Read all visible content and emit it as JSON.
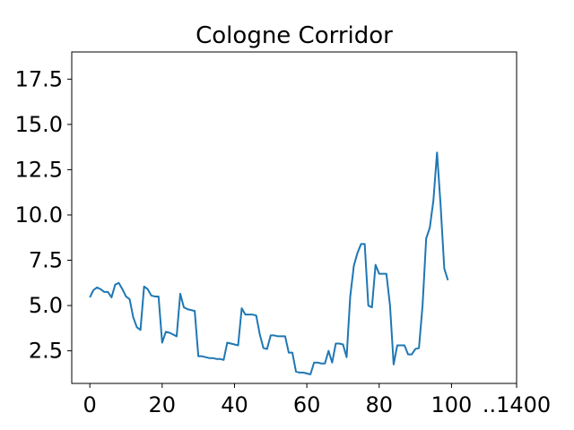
{
  "chart_data": {
    "type": "line",
    "title": "Cologne Corridor",
    "xlabel": "",
    "ylabel": "",
    "x_ticks": [
      "0",
      "20",
      "40",
      "60",
      "80",
      "100",
      "..1400"
    ],
    "y_ticks": [
      "2.5",
      "5.0",
      "7.5",
      "10.0",
      "12.5",
      "15.0",
      "17.5"
    ],
    "xlim": [
      -5,
      118
    ],
    "ylim": [
      0.7,
      19.0
    ],
    "grid": false,
    "legend": "none",
    "line_color": "#1f77b4",
    "series": [
      {
        "x": [
          0,
          1,
          2,
          3,
          4,
          5,
          6,
          7,
          8,
          9,
          10,
          11,
          12,
          13,
          14,
          15,
          16,
          17,
          18,
          19,
          20,
          21,
          22,
          23,
          24,
          25,
          26,
          27,
          28,
          29,
          30,
          31,
          32,
          33,
          34,
          35,
          36,
          37,
          38,
          39,
          40,
          41,
          42,
          43,
          44,
          45,
          46,
          47,
          48,
          49,
          50,
          51,
          52,
          53,
          54,
          55,
          56,
          57,
          58,
          59,
          60,
          61,
          62,
          63,
          64,
          65,
          66,
          67,
          68,
          69,
          70,
          71,
          72,
          73,
          74,
          75,
          76,
          77,
          78,
          79,
          80,
          81,
          82,
          83,
          84,
          85,
          86,
          87,
          88,
          89,
          90,
          91,
          92,
          93,
          94,
          95,
          96,
          97,
          98,
          99
        ],
        "y": [
          5.45,
          5.85,
          6.0,
          5.9,
          5.75,
          5.75,
          5.45,
          6.15,
          6.25,
          5.9,
          5.5,
          5.35,
          4.35,
          3.8,
          3.65,
          6.05,
          5.9,
          5.55,
          5.5,
          5.5,
          2.95,
          3.55,
          3.5,
          3.4,
          3.3,
          5.65,
          4.9,
          4.8,
          4.75,
          4.7,
          2.2,
          2.2,
          2.15,
          2.1,
          2.1,
          2.05,
          2.05,
          2.0,
          2.95,
          2.9,
          2.85,
          2.8,
          4.85,
          4.5,
          4.5,
          4.5,
          4.45,
          3.4,
          2.65,
          2.6,
          3.35,
          3.35,
          3.3,
          3.3,
          3.3,
          2.4,
          2.4,
          1.35,
          1.3,
          1.3,
          1.25,
          1.2,
          1.85,
          1.85,
          1.8,
          1.8,
          2.5,
          1.85,
          2.9,
          2.9,
          2.85,
          2.15,
          5.5,
          7.2,
          7.9,
          8.4,
          8.4,
          5.0,
          4.9,
          7.25,
          6.75,
          6.75,
          6.75,
          5.0,
          1.75,
          2.8,
          2.8,
          2.8,
          2.3,
          2.3,
          2.6,
          2.65,
          5.0,
          8.7,
          9.3,
          10.8,
          13.45,
          10.5,
          7.05,
          6.4
        ]
      }
    ]
  }
}
